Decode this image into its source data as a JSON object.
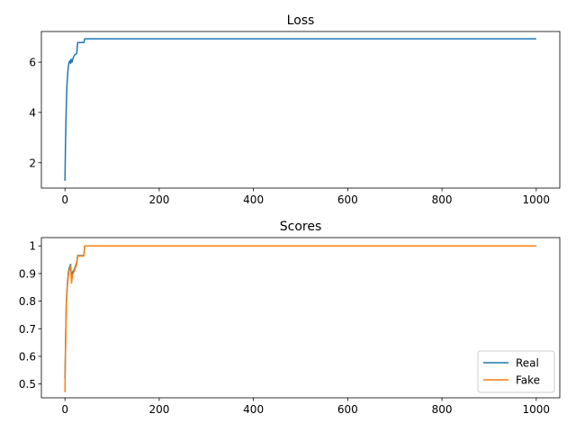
{
  "chart_data": [
    {
      "type": "line",
      "title": "Loss",
      "xlabel": "",
      "ylabel": "",
      "xlim": [
        -50,
        1050
      ],
      "ylim": [
        0.99,
        7.22
      ],
      "xticks": [
        0,
        200,
        400,
        600,
        800,
        1000
      ],
      "yticks": [
        2,
        4,
        6
      ],
      "grid": false,
      "legend": null,
      "series": [
        {
          "color": "#1f77b4",
          "points": [
            [
              0,
              1.28
            ],
            [
              1,
              2.6
            ],
            [
              2,
              3.6
            ],
            [
              3,
              4.4
            ],
            [
              4,
              5.0
            ],
            [
              6,
              5.6
            ],
            [
              8,
              5.95
            ],
            [
              10,
              6.05
            ],
            [
              12,
              5.95
            ],
            [
              13,
              6.12
            ],
            [
              15,
              6.0
            ],
            [
              17,
              6.15
            ],
            [
              20,
              6.28
            ],
            [
              25,
              6.35
            ],
            [
              27,
              6.78
            ],
            [
              40,
              6.78
            ],
            [
              42,
              6.93
            ],
            [
              1000,
              6.93
            ]
          ]
        }
      ]
    },
    {
      "type": "line",
      "title": "Scores",
      "xlabel": "",
      "ylabel": "",
      "xlim": [
        -50,
        1050
      ],
      "ylim": [
        0.45,
        1.03
      ],
      "xticks": [
        0,
        200,
        400,
        600,
        800,
        1000
      ],
      "yticks": [
        0.5,
        0.6,
        0.7,
        0.8,
        0.9,
        1.0
      ],
      "grid": false,
      "legend": "lower right",
      "series": [
        {
          "name": "Real",
          "color": "#1f77b4",
          "points": [
            [
              0,
              0.52
            ],
            [
              1,
              0.62
            ],
            [
              2,
              0.72
            ],
            [
              3,
              0.8
            ],
            [
              5,
              0.86
            ],
            [
              7,
              0.9
            ],
            [
              9,
              0.92
            ],
            [
              12,
              0.933
            ],
            [
              14,
              0.875
            ],
            [
              16,
              0.905
            ],
            [
              20,
              0.915
            ],
            [
              25,
              0.94
            ],
            [
              27,
              0.965
            ],
            [
              40,
              0.965
            ],
            [
              42,
              1.0
            ],
            [
              1000,
              1.0
            ]
          ]
        },
        {
          "name": "Fake",
          "color": "#ff7f0e",
          "points": [
            [
              0,
              0.47
            ],
            [
              1,
              0.6
            ],
            [
              2,
              0.7
            ],
            [
              3,
              0.79
            ],
            [
              5,
              0.85
            ],
            [
              7,
              0.89
            ],
            [
              9,
              0.91
            ],
            [
              12,
              0.928
            ],
            [
              14,
              0.865
            ],
            [
              16,
              0.895
            ],
            [
              20,
              0.91
            ],
            [
              25,
              0.935
            ],
            [
              27,
              0.963
            ],
            [
              40,
              0.963
            ],
            [
              42,
              1.0
            ],
            [
              1000,
              1.0
            ]
          ]
        }
      ]
    }
  ]
}
